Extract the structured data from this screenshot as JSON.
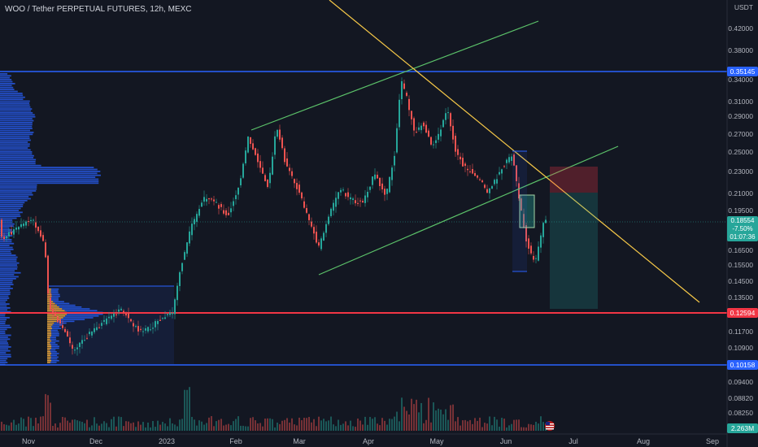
{
  "header": {
    "title": "WOO / Tether PERPETUAL FUTURES, 12h, MEXC"
  },
  "price_axis": {
    "currency": "USDT",
    "ticks": [
      "0.42000",
      "0.38000",
      "0.34000",
      "0.31000",
      "0.29000",
      "0.27000",
      "0.25000",
      "0.23000",
      "0.21000",
      "0.19500",
      "0.16500",
      "0.15500",
      "0.14500",
      "0.13500",
      "0.11700",
      "0.10900",
      "0.09400",
      "0.08820",
      "0.08250"
    ],
    "tags": {
      "upper_line": "0.35145",
      "current_price": "0.18554",
      "current_change": "-7.50%",
      "countdown": "01:07:36",
      "red_line": "0.12594",
      "lower_line": "0.10158",
      "volume": "2.263M"
    }
  },
  "time_axis": {
    "labels": [
      "Nov",
      "Dec",
      "2023",
      "Feb",
      "Mar",
      "Apr",
      "May",
      "Jun",
      "Jul",
      "Aug",
      "Sep"
    ]
  },
  "colors": {
    "background": "#131722",
    "up": "#26a69a",
    "down": "#ef5350",
    "blue_line": "#2962ff",
    "red_line": "#f23645",
    "trendline": "#f7c948",
    "channel": "#5cc36a",
    "profile": "#2962ff",
    "profile_hot": "#f5a623"
  },
  "icons": {
    "flag": "us-flag-icon"
  }
}
